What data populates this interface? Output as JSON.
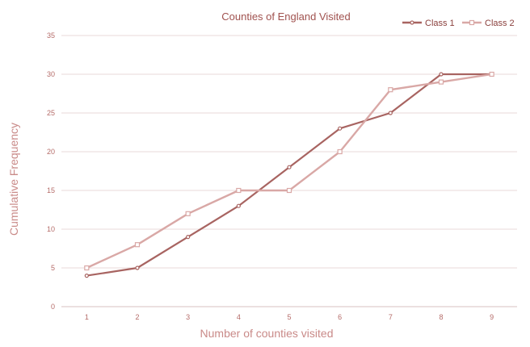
{
  "chart_data": {
    "type": "line",
    "title": "Counties of England Visited",
    "xlabel": "Number of counties visited",
    "ylabel": "Cumulative Frequency",
    "x": [
      1,
      2,
      3,
      4,
      5,
      6,
      7,
      8,
      9
    ],
    "xlim": [
      0.5,
      9.5
    ],
    "ylim": [
      0,
      35
    ],
    "yticks": [
      0,
      5,
      10,
      15,
      20,
      25,
      30,
      35
    ],
    "grid": true,
    "legend_position": "top-right",
    "series": [
      {
        "name": "Class 1",
        "values": [
          4,
          5,
          9,
          13,
          18,
          23,
          25,
          30,
          30
        ],
        "color": "#a86461",
        "marker": "circle"
      },
      {
        "name": "Class 2",
        "values": [
          5,
          8,
          12,
          15,
          15,
          20,
          28,
          29,
          30
        ],
        "color": "#d9a8a6",
        "marker": "square"
      }
    ]
  }
}
